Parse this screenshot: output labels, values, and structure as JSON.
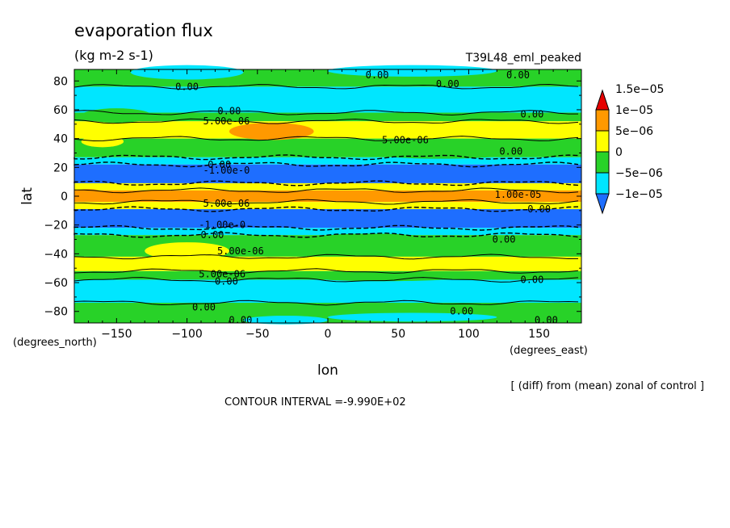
{
  "title": "evaporation flux",
  "units": "(kg m-2 s-1)",
  "run_label": "T39L48_eml_peaked",
  "xlabel": "lon",
  "ylabel": "lat",
  "x_unit_label": "(degrees_east)",
  "y_unit_label": "(degrees_north)",
  "diff_note": "[ (diff) from (mean) zonal of control ]",
  "contour_interval": "CONTOUR INTERVAL =-9.990E+02",
  "colors": {
    "c_neg10": "#1e6eff",
    "c_neg5": "#00e6ff",
    "c_0": "#28d228",
    "c_5": "#ffff00",
    "c_10": "#ff9900",
    "c_15": "#e60000"
  },
  "chart_data": {
    "type": "heatmap",
    "title": "evaporation flux",
    "subtitle": "(kg m-2 s-1)",
    "xlabel": "lon",
    "ylabel": "lat",
    "xlim": [
      -180,
      180
    ],
    "ylim": [
      -88,
      88
    ],
    "x_ticks": [
      -150,
      -100,
      -50,
      0,
      50,
      100,
      150
    ],
    "x_tick_labels": [
      "−150",
      "−100",
      "−50",
      "0",
      "50",
      "100",
      "150"
    ],
    "y_ticks": [
      -80,
      -60,
      -40,
      -20,
      0,
      20,
      40,
      60,
      80
    ],
    "y_tick_labels": [
      "−80",
      "−60",
      "−40",
      "−20",
      "0",
      "20",
      "40",
      "60",
      "80"
    ],
    "colorbar": {
      "levels": [
        -1e-05,
        -5e-06,
        0,
        5e-06,
        1e-05,
        1.5e-05
      ],
      "labels": [
        "−1e−05",
        "−5e−06",
        "0",
        "5e−06",
        "1e−05",
        "1.5e−05"
      ]
    },
    "bands": [
      {
        "lat_from": 88,
        "lat_to": 76,
        "value": 0
      },
      {
        "lat_from": 76,
        "lat_to": 58,
        "value": -5e-06
      },
      {
        "lat_from": 58,
        "lat_to": 52,
        "value": 0
      },
      {
        "lat_from": 52,
        "lat_to": 40,
        "value": 5e-06
      },
      {
        "lat_from": 40,
        "lat_to": 27,
        "value": 0
      },
      {
        "lat_from": 27,
        "lat_to": 22,
        "value": -5e-06
      },
      {
        "lat_from": 22,
        "lat_to": 9,
        "value": -1e-05
      },
      {
        "lat_from": 9,
        "lat_to": 4,
        "value": 5e-06
      },
      {
        "lat_from": 4,
        "lat_to": -4,
        "value": 1e-05
      },
      {
        "lat_from": -4,
        "lat_to": -9,
        "value": 5e-06
      },
      {
        "lat_from": -9,
        "lat_to": -22,
        "value": -1e-05
      },
      {
        "lat_from": -22,
        "lat_to": -27,
        "value": -5e-06
      },
      {
        "lat_from": -27,
        "lat_to": -42,
        "value": 0
      },
      {
        "lat_from": -42,
        "lat_to": -52,
        "value": 5e-06
      },
      {
        "lat_from": -52,
        "lat_to": -58,
        "value": 0
      },
      {
        "lat_from": -58,
        "lat_to": -74,
        "value": -5e-06
      },
      {
        "lat_from": -74,
        "lat_to": -88,
        "value": 0
      }
    ],
    "contour_labels": [
      {
        "lon": -100,
        "lat": 76,
        "text": "0.00"
      },
      {
        "lon": 35,
        "lat": 84,
        "text": "0.00"
      },
      {
        "lon": 85,
        "lat": 78,
        "text": "0.00"
      },
      {
        "lon": 135,
        "lat": 84,
        "text": "0.00"
      },
      {
        "lon": -72,
        "lat": 52,
        "text": "5.00e-06"
      },
      {
        "lon": -70,
        "lat": 59,
        "text": "0.00"
      },
      {
        "lon": 145,
        "lat": 57,
        "text": "0.00"
      },
      {
        "lon": 55,
        "lat": 39,
        "text": "5.00e-06"
      },
      {
        "lon": 130,
        "lat": 31,
        "text": "0.00"
      },
      {
        "lon": -77,
        "lat": 22,
        "text": "0.00"
      },
      {
        "lon": -72,
        "lat": 18,
        "text": "-1.00e-0"
      },
      {
        "lon": 135,
        "lat": 1,
        "text": "1.00e-05"
      },
      {
        "lon": -72,
        "lat": -5,
        "text": "5.00e-06"
      },
      {
        "lon": 150,
        "lat": -9,
        "text": "0.00"
      },
      {
        "lon": -75,
        "lat": -20,
        "text": "-1.00e-0"
      },
      {
        "lon": -82,
        "lat": -27,
        "text": "0.00"
      },
      {
        "lon": 125,
        "lat": -30,
        "text": "0.00"
      },
      {
        "lon": -62,
        "lat": -38,
        "text": "5.00e-06"
      },
      {
        "lon": -75,
        "lat": -54,
        "text": "5.00e-06"
      },
      {
        "lon": -72,
        "lat": -59,
        "text": "0.00"
      },
      {
        "lon": 145,
        "lat": -58,
        "text": "0.00"
      },
      {
        "lon": -88,
        "lat": -77,
        "text": "0.00"
      },
      {
        "lon": 95,
        "lat": -80,
        "text": "0.00"
      },
      {
        "lon": -62,
        "lat": -86,
        "text": "0.00"
      },
      {
        "lon": 155,
        "lat": -86,
        "text": "0.00"
      }
    ]
  }
}
